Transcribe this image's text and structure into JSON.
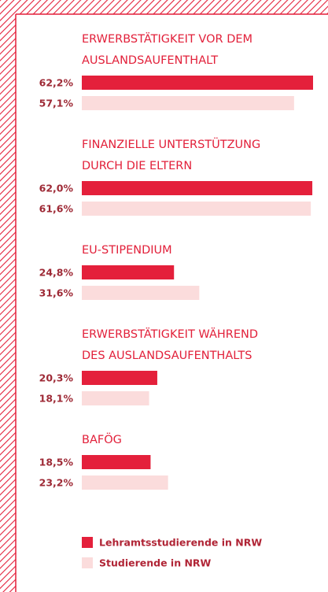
{
  "chart_data": {
    "type": "bar",
    "orientation": "horizontal",
    "categories": [
      [
        "ERWERBSTÄTIGKEIT VOR DEM",
        "AUSLANDSAUFENTHALT"
      ],
      [
        "FINANZIELLE UNTERSTÜTZUNG",
        "DURCH DIE ELTERN"
      ],
      [
        "EU-STIPENDIUM"
      ],
      [
        "ERWERBSTÄTIGKEIT WÄHREND",
        "DES AUSLANDSAUFENTHALTS"
      ],
      [
        "BAFÖG"
      ]
    ],
    "series": [
      {
        "name": "Lehramtsstudierende in NRW",
        "color": "#e4203b",
        "values": [
          62.2,
          62.0,
          24.8,
          20.3,
          18.5
        ],
        "value_labels": [
          "62,2%",
          "62,0%",
          "24,8%",
          "20,3%",
          "18,5%"
        ]
      },
      {
        "name": "Studierende in NRW",
        "color": "#fbdcdc",
        "values": [
          57.1,
          61.6,
          31.6,
          18.1,
          23.2
        ],
        "value_labels": [
          "57,1%",
          "61,6%",
          "31,6%",
          "18,1%",
          "23,2%"
        ]
      }
    ]
  }
}
